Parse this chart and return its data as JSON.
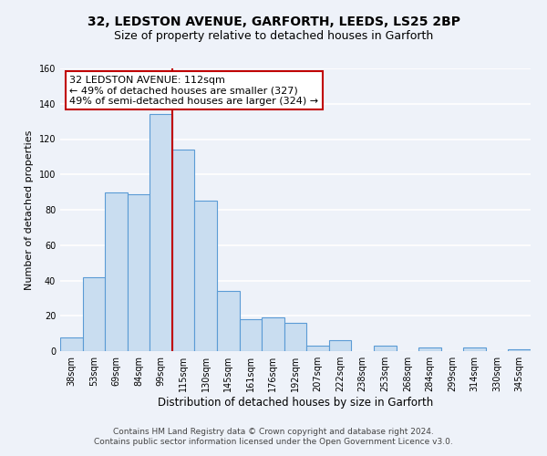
{
  "title": "32, LEDSTON AVENUE, GARFORTH, LEEDS, LS25 2BP",
  "subtitle": "Size of property relative to detached houses in Garforth",
  "xlabel": "Distribution of detached houses by size in Garforth",
  "ylabel": "Number of detached properties",
  "bar_labels": [
    "38sqm",
    "53sqm",
    "69sqm",
    "84sqm",
    "99sqm",
    "115sqm",
    "130sqm",
    "145sqm",
    "161sqm",
    "176sqm",
    "192sqm",
    "207sqm",
    "222sqm",
    "238sqm",
    "253sqm",
    "268sqm",
    "284sqm",
    "299sqm",
    "314sqm",
    "330sqm",
    "345sqm"
  ],
  "bar_values": [
    8,
    42,
    90,
    89,
    134,
    114,
    85,
    34,
    18,
    19,
    16,
    3,
    6,
    0,
    3,
    0,
    2,
    0,
    2,
    0,
    1
  ],
  "bar_color": "#c9ddf0",
  "bar_edge_color": "#5b9bd5",
  "highlight_line_color": "#c00000",
  "annotation_line1": "32 LEDSTON AVENUE: 112sqm",
  "annotation_line2": "← 49% of detached houses are smaller (327)",
  "annotation_line3": "49% of semi-detached houses are larger (324) →",
  "annotation_box_edge_color": "#c00000",
  "annotation_box_face_color": "#ffffff",
  "ylim": [
    0,
    160
  ],
  "yticks": [
    0,
    20,
    40,
    60,
    80,
    100,
    120,
    140,
    160
  ],
  "footer_line1": "Contains HM Land Registry data © Crown copyright and database right 2024.",
  "footer_line2": "Contains public sector information licensed under the Open Government Licence v3.0.",
  "bg_color": "#eef2f9",
  "plot_bg_color": "#eef2f9",
  "grid_color": "#ffffff",
  "title_fontsize": 10,
  "subtitle_fontsize": 9,
  "xlabel_fontsize": 8.5,
  "ylabel_fontsize": 8,
  "tick_fontsize": 7,
  "footer_fontsize": 6.5,
  "annotation_fontsize": 8
}
